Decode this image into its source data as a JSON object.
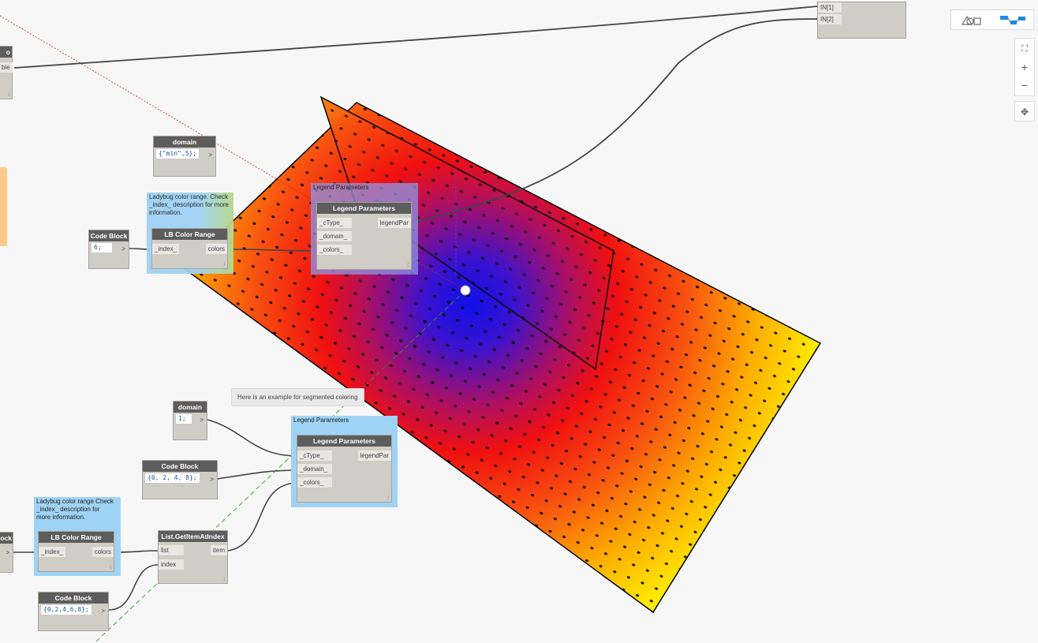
{
  "view_toggle": {
    "geometry_icon": "shapes-icon",
    "graph_icon": "graph-icon"
  },
  "zoom_controls": {
    "fit_icon": "fit-view-icon",
    "zoom_in": "+",
    "zoom_out": "−",
    "pan_icon": "pan-icon"
  },
  "watch_node": {
    "port1": "IN[1]",
    "port2": "IN[2]"
  },
  "left_partial_node": {
    "header": "o",
    "port": "ble"
  },
  "left_partial_node2": {
    "header": "ock",
    "run": ">"
  },
  "domain_node_1": {
    "header": "domain",
    "code": "{\"min\",5};",
    "run": ">"
  },
  "group_1": {
    "text": "Ladybug color range. Check _index_ description for more information."
  },
  "code_block_1": {
    "header": "Code Block",
    "code": "6;",
    "run": ">"
  },
  "lb_color_range_1": {
    "header": "LB Color Range",
    "input": "_index_",
    "output": "colors"
  },
  "legend_group_1": {
    "title": "Legend Parameters"
  },
  "legend_params_1": {
    "header": "Legend Parameters",
    "inputs": [
      "_cType_",
      "_domain_",
      "_colors_"
    ],
    "output": "legendPar"
  },
  "note_segmented": {
    "text": "Here is an example for segmented coloring"
  },
  "domain_node_2": {
    "header": "domain",
    "code": "1;",
    "run": ">"
  },
  "code_block_2": {
    "header": "Code Block",
    "code": "{0, 2, 4, 8};",
    "run": ">"
  },
  "legend_group_2": {
    "title": "Legend Parameters"
  },
  "legend_params_2": {
    "header": "Legend Parameters",
    "inputs": [
      "_cType_",
      "_domain_",
      "_colors_"
    ],
    "output": "legendPar"
  },
  "group_2": {
    "text": "Ladybug color range Check _index_ description for more information."
  },
  "lb_color_range_2": {
    "header": "LB Color Range",
    "input": "_index_",
    "output": "colors"
  },
  "list_get_item": {
    "header": "List.GetItemAtIndex",
    "inputs": [
      "list",
      "index"
    ],
    "output": "item"
  },
  "code_block_3": {
    "header": "Code Block",
    "code": "{0,2,4,6,8};",
    "run": ">"
  },
  "colors": {
    "accent": "#1e88e5",
    "group_blue": "#9fd3f5",
    "node_header": "#5d5d5d",
    "node_body": "#d0ccc6"
  }
}
